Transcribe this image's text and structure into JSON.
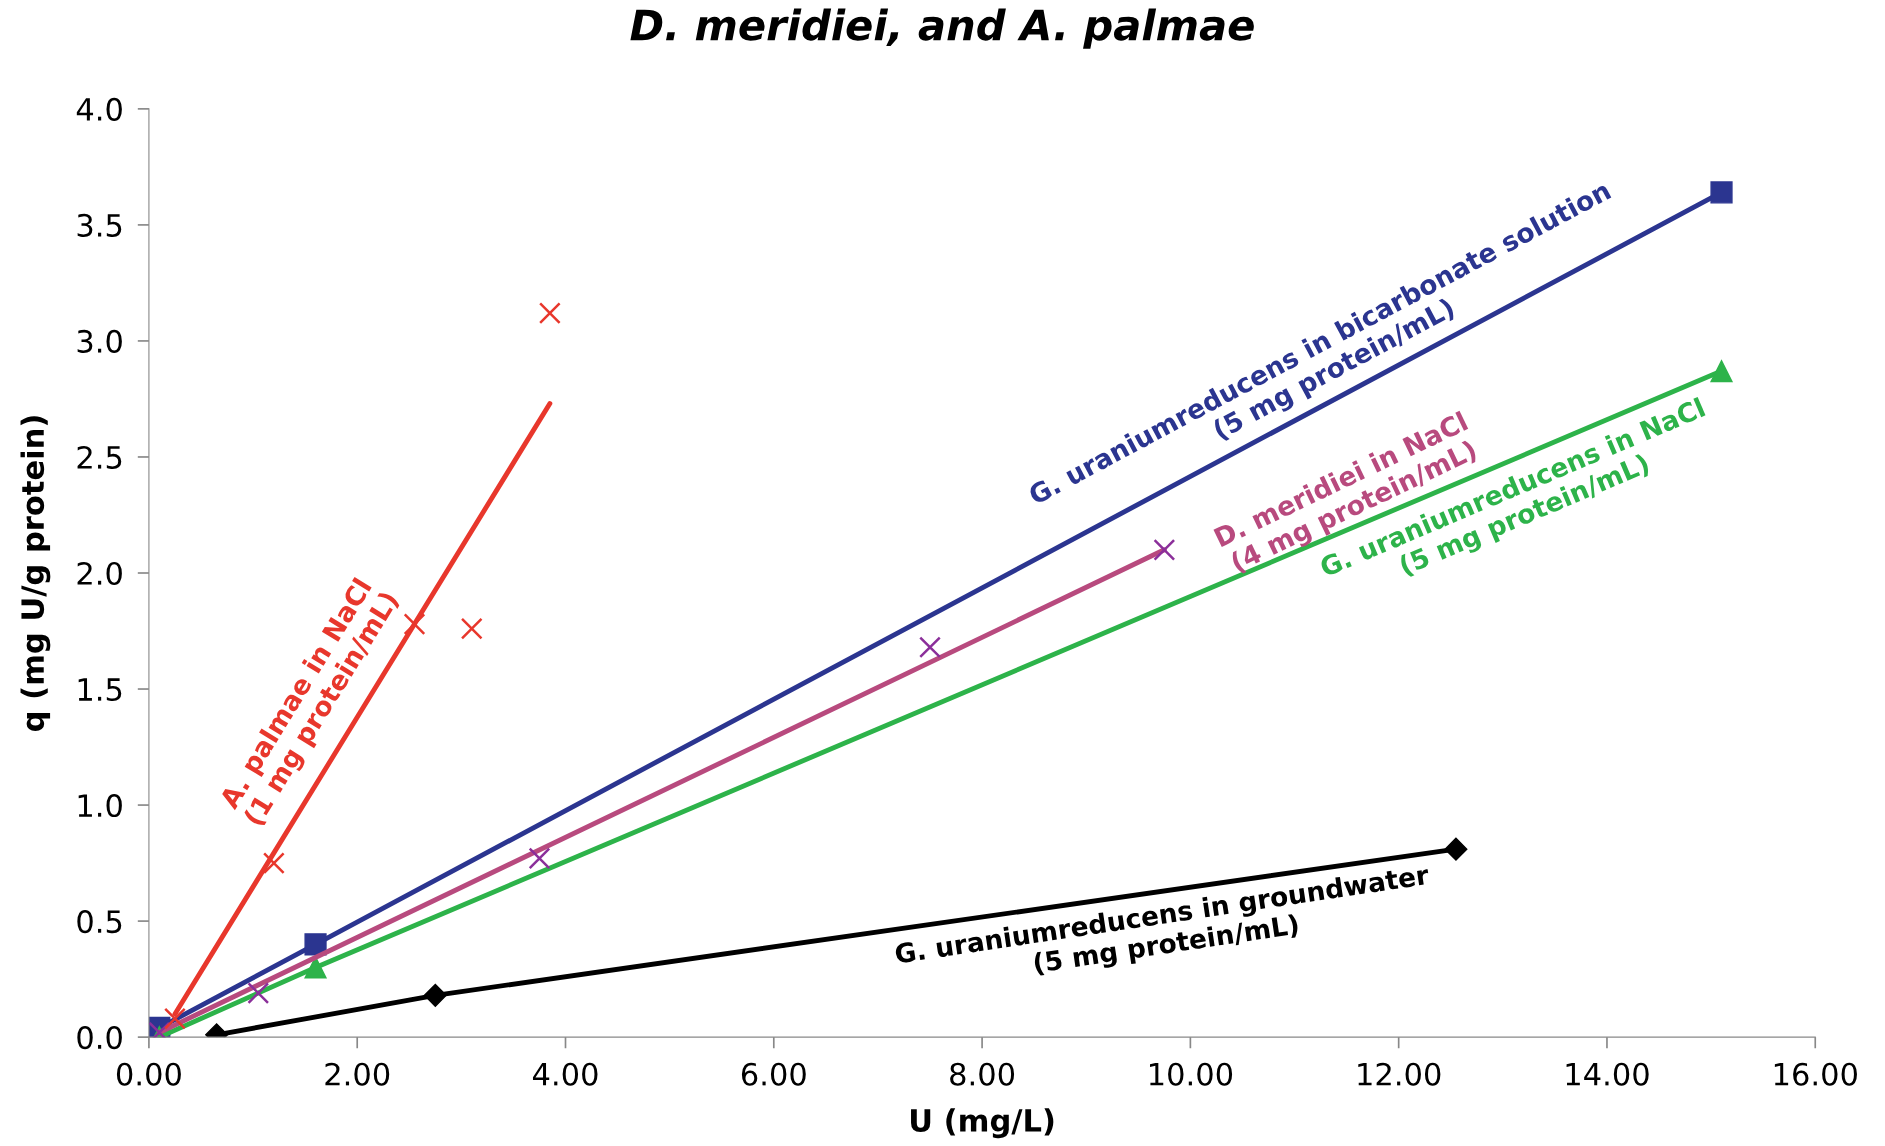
{
  "chart_data": {
    "type": "line",
    "title": "D. meridiei, and A. palmae",
    "xlabel": "U (mg/L)",
    "ylabel": "q (mg U/g protein)",
    "xlim": [
      0,
      16
    ],
    "ylim": [
      0,
      4.0
    ],
    "xticks": [
      {
        "value": 0,
        "label": "0.00"
      },
      {
        "value": 2,
        "label": "2.00"
      },
      {
        "value": 4,
        "label": "4.00"
      },
      {
        "value": 6,
        "label": "6.00"
      },
      {
        "value": 8,
        "label": "8.00"
      },
      {
        "value": 10,
        "label": "10.00"
      },
      {
        "value": 12,
        "label": "12.00"
      },
      {
        "value": 14,
        "label": "14.00"
      },
      {
        "value": 16,
        "label": "16.00"
      }
    ],
    "yticks": [
      {
        "value": 0,
        "label": "0.0"
      },
      {
        "value": 0.5,
        "label": "0.5"
      },
      {
        "value": 1,
        "label": "1.0"
      },
      {
        "value": 1.5,
        "label": "1.5"
      },
      {
        "value": 2,
        "label": "2.0"
      },
      {
        "value": 2.5,
        "label": "2.5"
      },
      {
        "value": 3,
        "label": "3.0"
      },
      {
        "value": 3.5,
        "label": "3.5"
      },
      {
        "value": 4,
        "label": "4.0"
      }
    ],
    "grid": false,
    "legend": false,
    "series": [
      {
        "name": "G. uraniumreducens in bicarbonate solution\n(5 mg protein/mL)",
        "color": "#2b3590",
        "marker": "square",
        "x": [
          0.1,
          1.6,
          15.1
        ],
        "values": [
          0.04,
          0.4,
          3.64
        ]
      },
      {
        "name": "G. uraniumreducens in NaCl\n(5 mg protein/mL)",
        "color": "#2db34a",
        "marker": "triangle",
        "x": [
          0.1,
          1.6,
          15.1
        ],
        "values": [
          0.0,
          0.3,
          2.87
        ]
      },
      {
        "name": "G. uraniumreducens in groundwater\n(5 mg protein/mL)",
        "color": "#000000",
        "marker": "diamond",
        "x": [
          0.65,
          2.75,
          12.55
        ],
        "values": [
          0.01,
          0.18,
          0.81
        ]
      },
      {
        "name": "D. meridiei in NaCl\n(4 mg protein/mL)",
        "color": "#b84a7e",
        "marker": "none",
        "x": [
          0.1,
          9.75
        ],
        "values": [
          0.02,
          2.1
        ]
      },
      {
        "type": "scatter",
        "color": "#8b2f9a",
        "marker": "cross",
        "x": [
          0.1,
          1.05,
          3.75,
          7.5,
          9.75
        ],
        "values": [
          0.02,
          0.19,
          0.77,
          1.68,
          2.1
        ]
      },
      {
        "name": "A. palmae in NaCl\n(1 mg protein/mL)",
        "color": "#e8372c",
        "marker": "none",
        "x": [
          0.25,
          3.85
        ],
        "values": [
          0.1,
          2.73
        ]
      },
      {
        "type": "scatter",
        "color": "#e8372c",
        "marker": "cross",
        "x": [
          0.25,
          1.2,
          2.55,
          3.1,
          3.85
        ],
        "values": [
          0.08,
          0.75,
          1.78,
          1.76,
          3.12
        ]
      }
    ]
  }
}
